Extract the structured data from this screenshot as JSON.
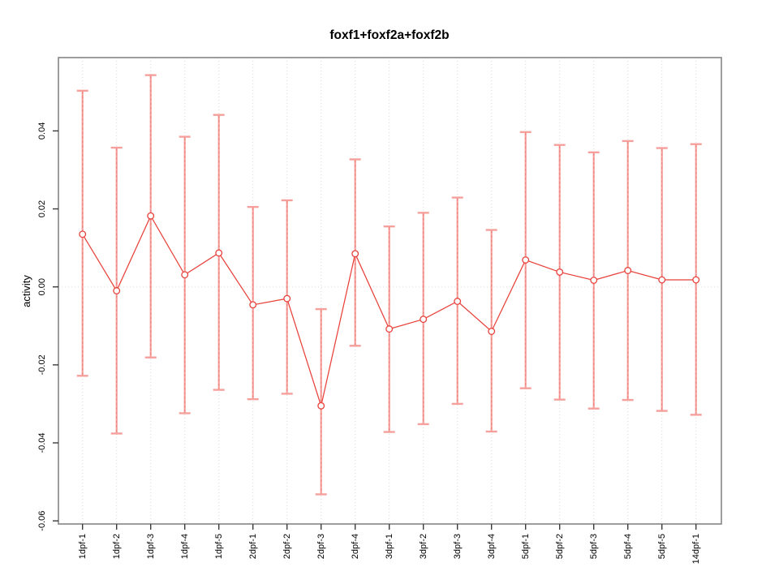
{
  "chart_data": {
    "type": "line",
    "title": "foxf1+foxf2a+foxf2b",
    "ylabel": "activity",
    "categories": [
      "1dpf-1",
      "1dpf-2",
      "1dpf-3",
      "1dpf-4",
      "1dpf-5",
      "2dpf-1",
      "2dpf-2",
      "2dpf-3",
      "2dpf-4",
      "3dpf-1",
      "3dpf-2",
      "3dpf-3",
      "3dpf-4",
      "5dpf-1",
      "5dpf-2",
      "5dpf-3",
      "5dpf-4",
      "5dpf-5",
      "14dpf-1"
    ],
    "series": [
      {
        "name": "activity",
        "values": [
          0.0135,
          -0.001,
          0.0182,
          0.0031,
          0.0087,
          -0.0046,
          -0.003,
          -0.0305,
          0.0085,
          -0.0108,
          -0.0083,
          -0.0037,
          -0.0114,
          0.0069,
          0.0038,
          0.0017,
          0.0042,
          0.0018,
          0.0018
        ],
        "error_high": [
          0.0503,
          0.0357,
          0.0543,
          0.0385,
          0.0441,
          0.0205,
          0.0222,
          -0.0057,
          0.0327,
          0.0155,
          0.019,
          0.0229,
          0.0146,
          0.0397,
          0.0364,
          0.0345,
          0.0374,
          0.0356,
          0.0366
        ],
        "error_low": [
          -0.0228,
          -0.0376,
          -0.0181,
          -0.0324,
          -0.0264,
          -0.0288,
          -0.0274,
          -0.0532,
          -0.0151,
          -0.0372,
          -0.0352,
          -0.03,
          -0.0371,
          -0.026,
          -0.0289,
          -0.0312,
          -0.029,
          -0.0318,
          -0.0328
        ]
      }
    ],
    "yticks": {
      "values": [
        0.04,
        0.02,
        0.0,
        -0.02,
        -0.04,
        -0.06
      ],
      "labels": [
        "0.04",
        "0.02",
        "0.00",
        "-0.02",
        "-0.04",
        "-0.06"
      ]
    },
    "ylim": [
      -0.0608,
      0.0588
    ],
    "grid": {
      "vertical_per_category": true,
      "zero_line": true,
      "horizontal_lines": false
    },
    "legend": "none",
    "colors": {
      "line": "#e8413a",
      "marker_stroke": "#e8413a",
      "marker_fill": "#ffffff",
      "error_bar": "#f5a09c",
      "error_bar_dash": "#ef7d77",
      "grid": "#d9d9d9",
      "frame": "#8c8c8c",
      "tick": "#3a3a3a",
      "text": "#000000"
    }
  }
}
